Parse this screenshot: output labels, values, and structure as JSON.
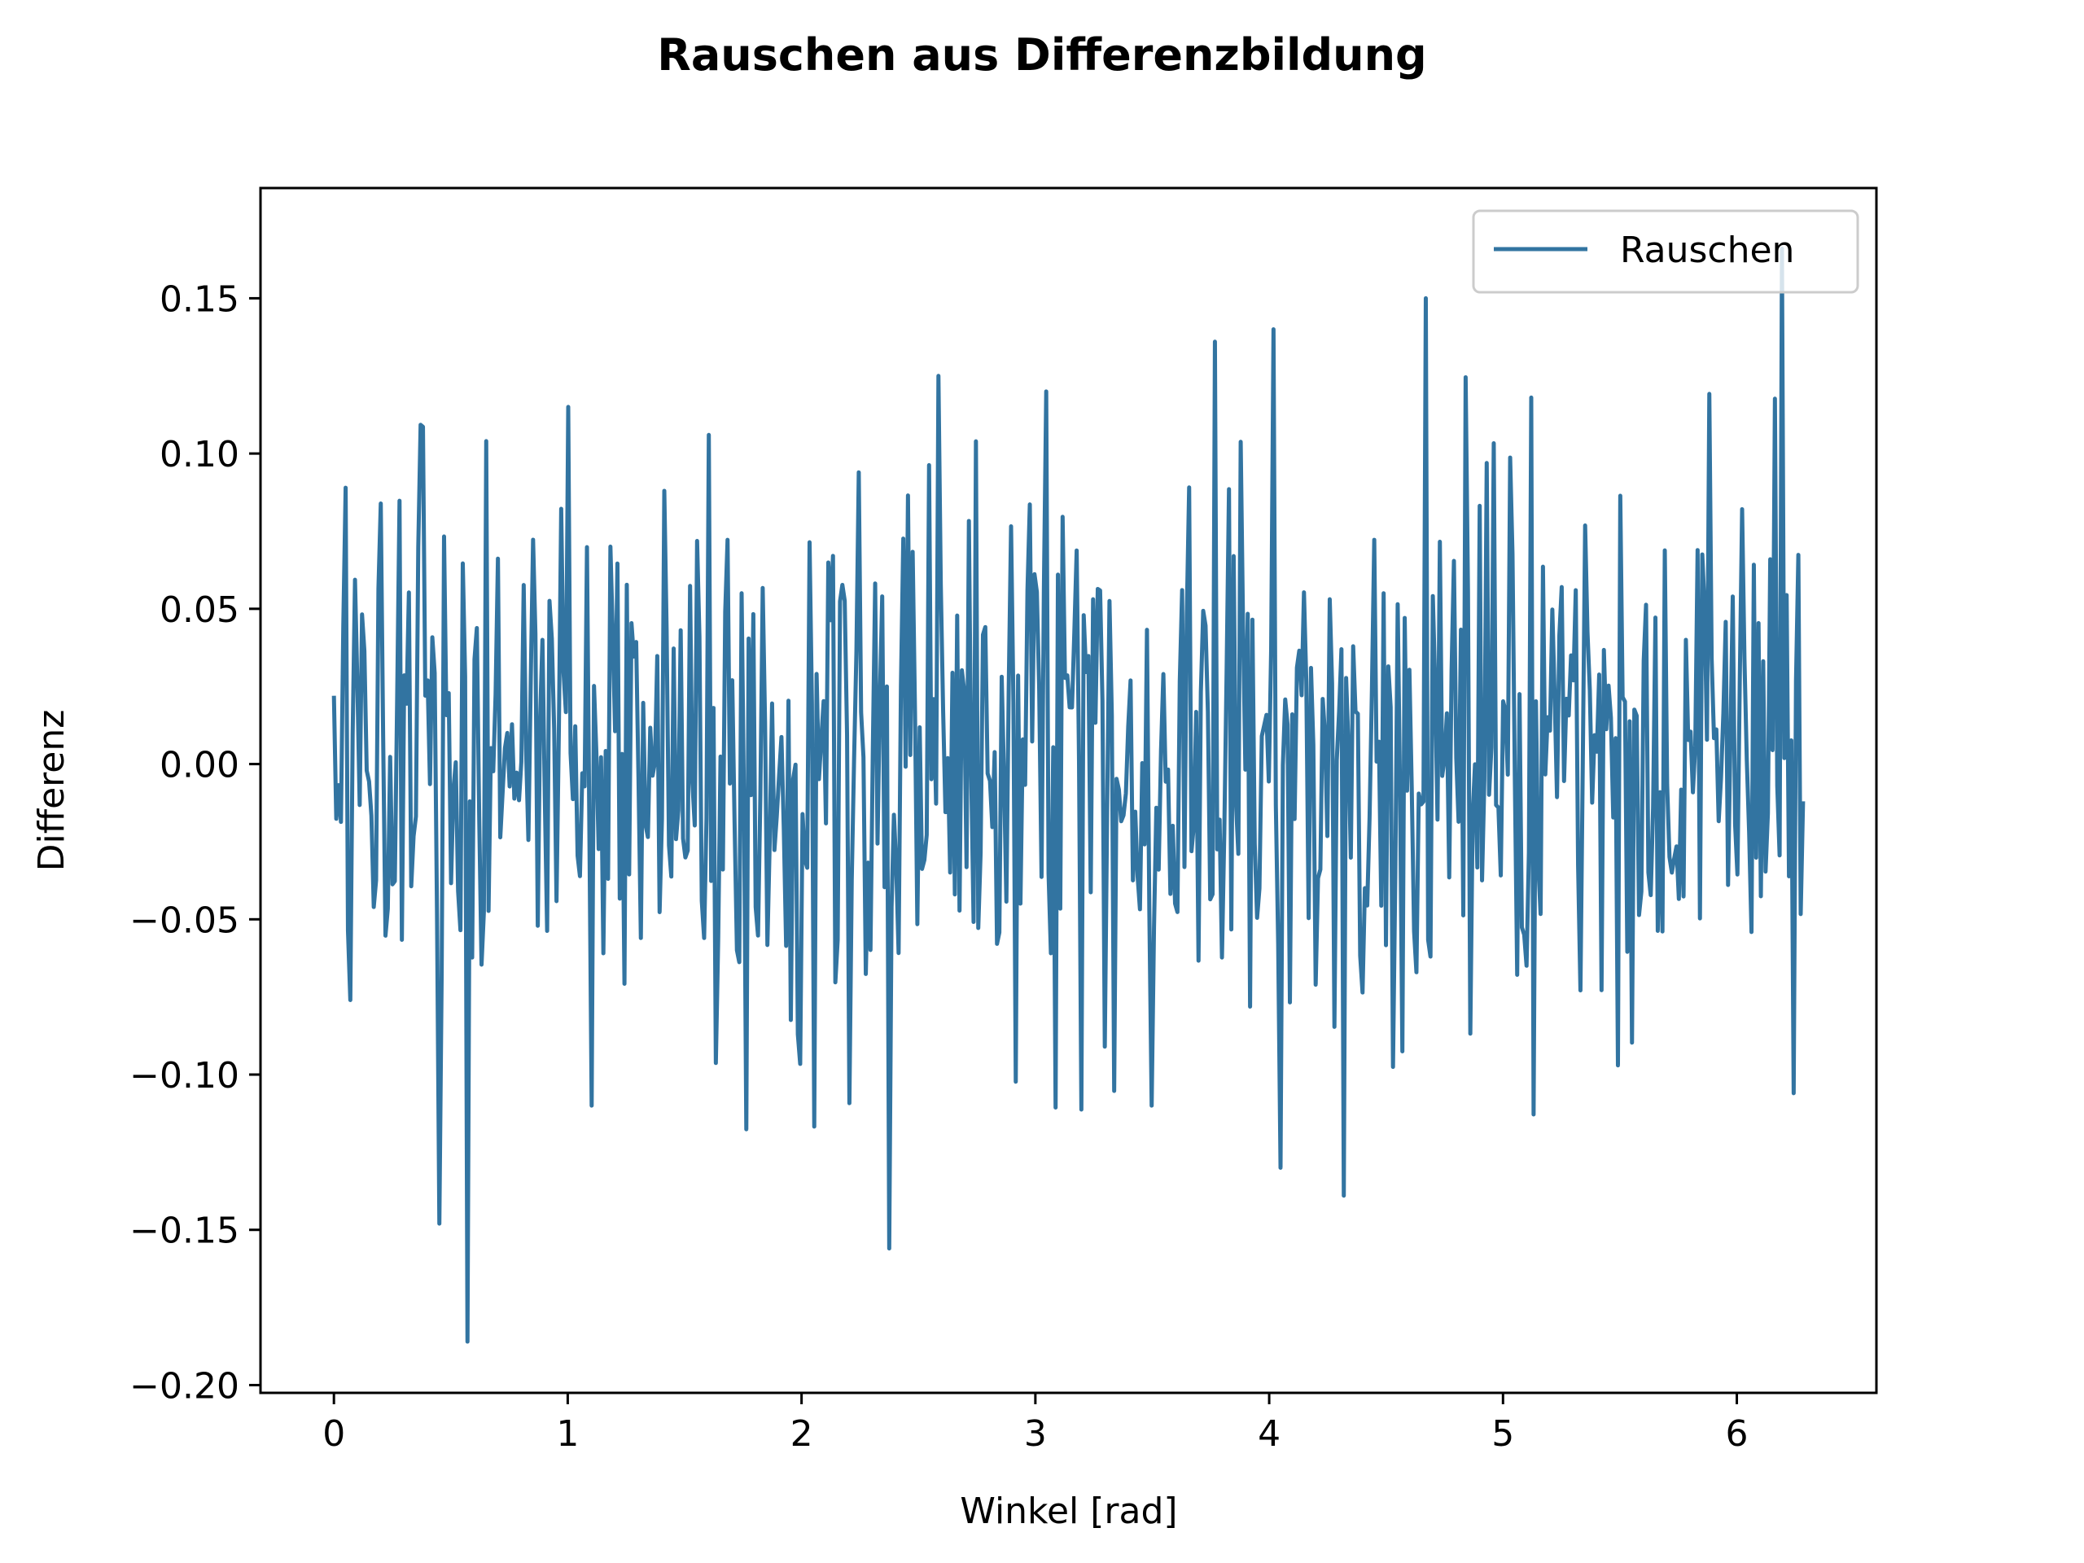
{
  "chart_data": {
    "type": "line",
    "title": "Rauschen aus Differenzbildung",
    "xlabel": "Winkel [rad]",
    "ylabel": "Differenz",
    "xlim": [
      -0.314,
      6.597
    ],
    "ylim": [
      -0.2025,
      0.1855
    ],
    "xticks": [
      0,
      1,
      2,
      3,
      4,
      5,
      6
    ],
    "xtick_labels": [
      "0",
      "1",
      "2",
      "3",
      "4",
      "5",
      "6"
    ],
    "yticks": [
      -0.2,
      -0.15,
      -0.1,
      -0.05,
      0.0,
      0.05,
      0.1,
      0.15
    ],
    "ytick_labels": [
      "−0.20",
      "−0.15",
      "−0.10",
      "−0.05",
      "0.00",
      "0.05",
      "0.10",
      "0.15"
    ],
    "grid": false,
    "legend_position": "upper-right",
    "series": [
      {
        "name": "Rauschen",
        "color": "#3274a1",
        "x_start": 0,
        "x_end": 6.2832,
        "points": 628,
        "mean": 0.0,
        "std": 0.045,
        "notable_points": [
          {
            "x": 0.0,
            "y": 0.022
          },
          {
            "x": 0.05,
            "y": 0.089
          },
          {
            "x": 0.07,
            "y": -0.076
          },
          {
            "x": 0.45,
            "y": -0.148
          },
          {
            "x": 0.57,
            "y": -0.186
          },
          {
            "x": 0.65,
            "y": 0.104
          },
          {
            "x": 1.0,
            "y": 0.115
          },
          {
            "x": 1.1,
            "y": -0.11
          },
          {
            "x": 2.38,
            "y": -0.156
          },
          {
            "x": 3.05,
            "y": 0.12
          },
          {
            "x": 3.5,
            "y": -0.11
          },
          {
            "x": 3.77,
            "y": 0.136
          },
          {
            "x": 4.02,
            "y": 0.14
          },
          {
            "x": 4.05,
            "y": -0.13
          },
          {
            "x": 4.32,
            "y": -0.139
          },
          {
            "x": 4.67,
            "y": 0.15
          },
          {
            "x": 6.19,
            "y": 0.166
          },
          {
            "x": 6.24,
            "y": -0.106
          },
          {
            "x": 6.2832,
            "y": -0.012
          }
        ]
      }
    ]
  }
}
